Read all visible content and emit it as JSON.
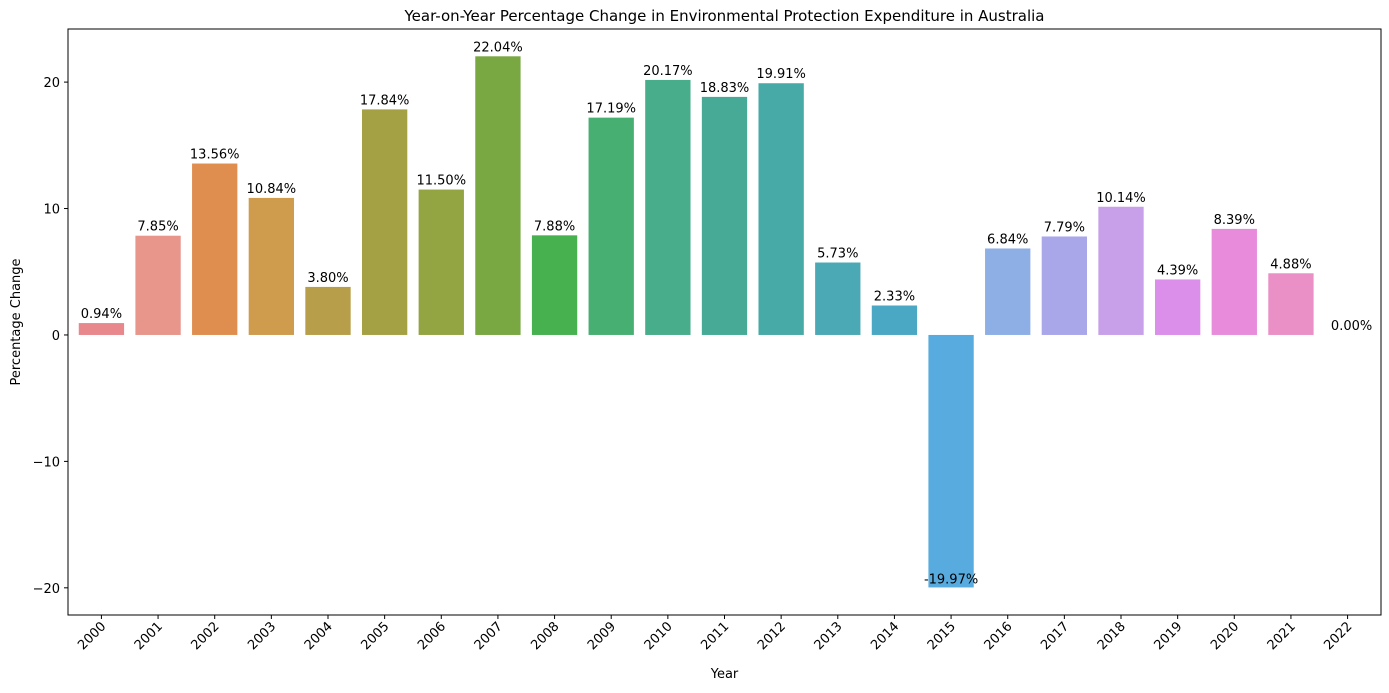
{
  "chart_data": {
    "type": "bar",
    "title": "Year-on-Year Percentage Change in Environmental Protection Expenditure in Australia",
    "xlabel": "Year",
    "ylabel": "Percentage Change",
    "ylim": [
      -22.15,
      24.2
    ],
    "yticks": [
      -20,
      -10,
      0,
      10,
      20
    ],
    "ytick_labels": [
      "−20",
      "−10",
      "0",
      "10",
      "20"
    ],
    "grid": false,
    "legend": "none",
    "categories": [
      "2000",
      "2001",
      "2002",
      "2003",
      "2004",
      "2005",
      "2006",
      "2007",
      "2008",
      "2009",
      "2010",
      "2011",
      "2012",
      "2013",
      "2014",
      "2015",
      "2016",
      "2017",
      "2018",
      "2019",
      "2020",
      "2021",
      "2022"
    ],
    "values": [
      0.94,
      7.85,
      13.56,
      10.84,
      3.8,
      17.84,
      11.5,
      22.04,
      7.88,
      17.19,
      20.17,
      18.83,
      19.91,
      5.73,
      2.33,
      -19.97,
      6.84,
      7.79,
      10.14,
      4.39,
      8.39,
      4.88,
      0.0
    ],
    "labels": [
      "0.94%",
      "7.85%",
      "13.56%",
      "10.84%",
      "3.80%",
      "17.84%",
      "11.50%",
      "22.04%",
      "7.88%",
      "17.19%",
      "20.17%",
      "18.83%",
      "19.91%",
      "5.73%",
      "2.33%",
      "-19.97%",
      "6.84%",
      "7.79%",
      "10.14%",
      "4.39%",
      "8.39%",
      "4.88%",
      "0.00%"
    ],
    "colors": [
      "#e8878c",
      "#e8968c",
      "#e08e4f",
      "#cf9b4d",
      "#b79e4a",
      "#a4a044",
      "#93a443",
      "#79a843",
      "#47b04f",
      "#48af73",
      "#48ad8a",
      "#46aa97",
      "#47aaa6",
      "#4aa9b5",
      "#4aa8c5",
      "#57abdf",
      "#8eaee6",
      "#a9a6ea",
      "#c7a0e9",
      "#db8eea",
      "#e88bdb",
      "#ea90c6",
      "#eb8fb0"
    ]
  }
}
